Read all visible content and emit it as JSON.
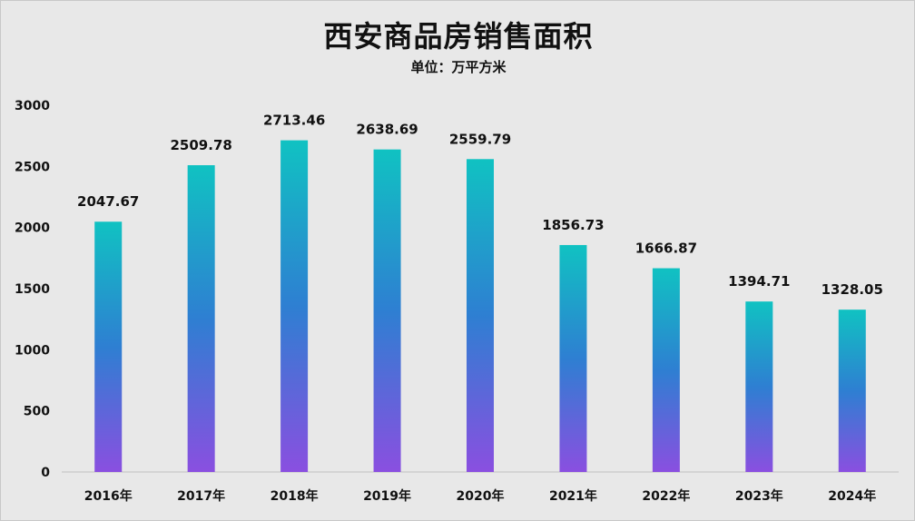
{
  "chart_data": {
    "type": "bar",
    "title": "西安商品房销售面积",
    "subtitle": "单位：万平方米",
    "categories": [
      "2016年",
      "2017年",
      "2018年",
      "2019年",
      "2020年",
      "2021年",
      "2022年",
      "2023年",
      "2024年"
    ],
    "values": [
      2047.67,
      2509.78,
      2713.46,
      2638.69,
      2559.79,
      1856.73,
      1666.87,
      1394.71,
      1328.05
    ],
    "value_labels": [
      "2047.67",
      "2509.78",
      "2713.46",
      "2638.69",
      "2559.79",
      "1856.73",
      "1666.87",
      "1394.71",
      "1328.05"
    ],
    "ylim": [
      0,
      3000
    ],
    "yticks": [
      0,
      500,
      1000,
      1500,
      2000,
      2500,
      3000
    ],
    "ytick_labels": [
      "0",
      "500",
      "1000",
      "1500",
      "2000",
      "2500",
      "3000"
    ],
    "grid": false,
    "legend": "none",
    "colors": {
      "bar_top": "#10c2c2",
      "bar_middle": "#2e7fd2",
      "bar_bottom": "#8a4fe0",
      "background": "#e8e8e8",
      "text": "#111111",
      "axis": "#bfbfbf"
    }
  }
}
